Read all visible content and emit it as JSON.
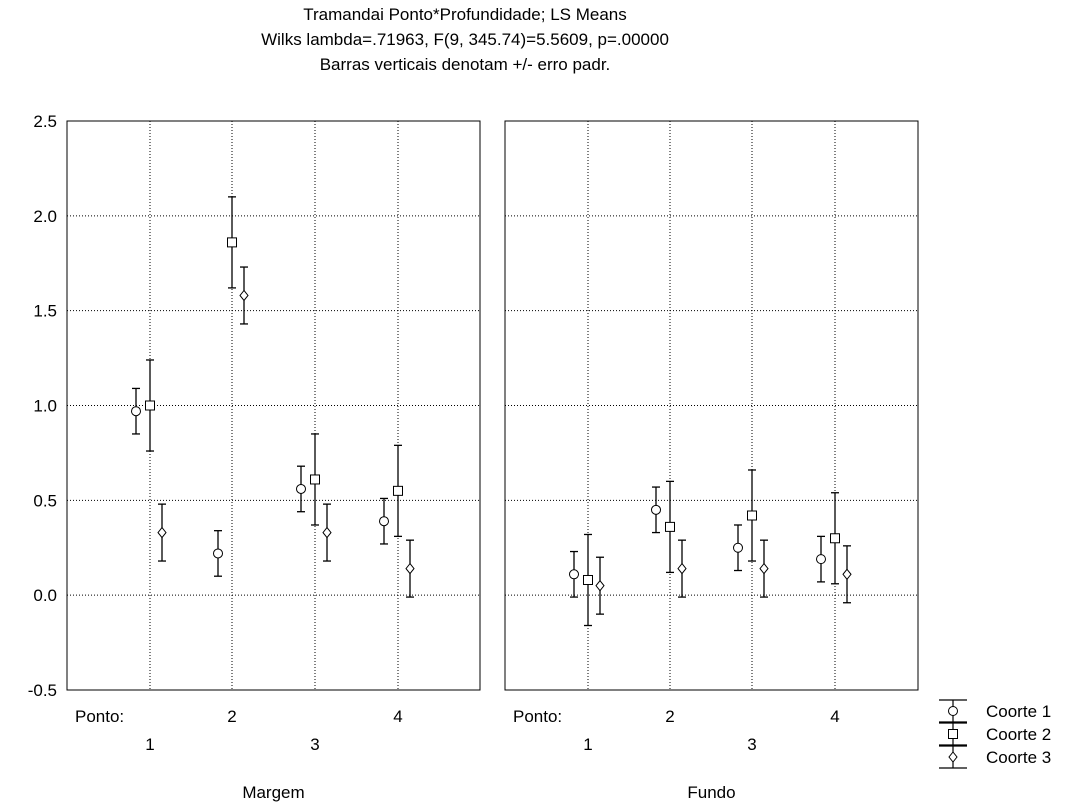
{
  "chart_data": {
    "type": "scatter",
    "title": "Tramandai Ponto*Profundidade; LS Means",
    "subtitle": "Wilks lambda=.71963, F(9, 345.74)=5.5609, p=.00000",
    "note": "Barras verticais denotam +/- erro padr.",
    "ylim": [
      -0.5,
      2.5
    ],
    "y_ticks": [
      "2.5",
      "2.0",
      "1.5",
      "1.0",
      "0.5",
      "0.0",
      "-0.5"
    ],
    "x_axis_name": "Ponto:",
    "x_tick_labels": [
      "1",
      "2",
      "3",
      "4"
    ],
    "grid": true,
    "legend_position": "bottom-right",
    "series_meta": [
      {
        "name": "Coorte 1",
        "marker": "circle"
      },
      {
        "name": "Coorte 2",
        "marker": "square"
      },
      {
        "name": "Coorte 3",
        "marker": "diamond"
      }
    ],
    "panels": [
      {
        "name": "Margem",
        "series": [
          {
            "name": "Coorte 1",
            "values": [
              0.97,
              0.22,
              0.56,
              0.39
            ],
            "errors": [
              0.12,
              0.12,
              0.12,
              0.12
            ]
          },
          {
            "name": "Coorte 2",
            "values": [
              1.0,
              1.86,
              0.61,
              0.55
            ],
            "errors": [
              0.24,
              0.24,
              0.24,
              0.24
            ]
          },
          {
            "name": "Coorte 3",
            "values": [
              0.33,
              1.58,
              0.33,
              0.14
            ],
            "errors": [
              0.15,
              0.15,
              0.15,
              0.15
            ]
          }
        ]
      },
      {
        "name": "Fundo",
        "series": [
          {
            "name": "Coorte 1",
            "values": [
              0.11,
              0.45,
              0.25,
              0.19
            ],
            "errors": [
              0.12,
              0.12,
              0.12,
              0.12
            ]
          },
          {
            "name": "Coorte 2",
            "values": [
              0.08,
              0.36,
              0.42,
              0.3
            ],
            "errors": [
              0.24,
              0.24,
              0.24,
              0.24
            ]
          },
          {
            "name": "Coorte 3",
            "values": [
              0.05,
              0.14,
              0.14,
              0.11
            ],
            "errors": [
              0.15,
              0.15,
              0.15,
              0.15
            ]
          }
        ]
      }
    ]
  }
}
